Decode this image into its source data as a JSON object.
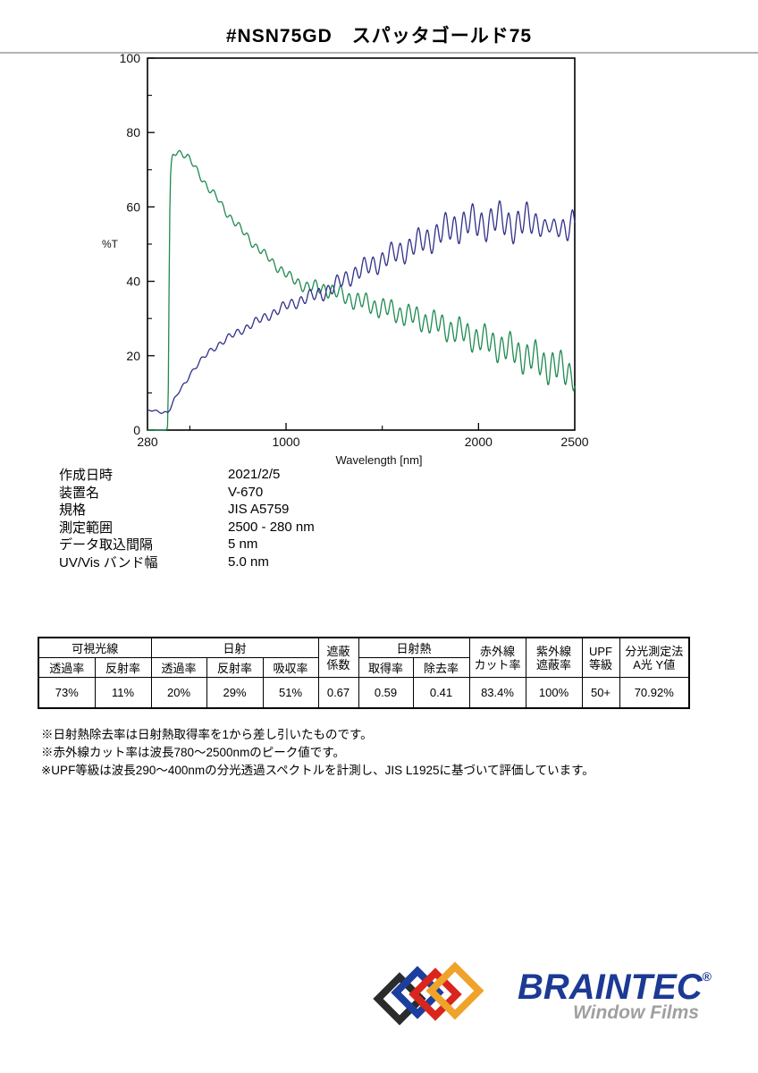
{
  "title": "#NSN75GD　スパッタゴールド75",
  "chart_data": {
    "type": "line",
    "title": "",
    "xlabel": "Wavelength [nm]",
    "ylabel": "%T",
    "xlim": [
      280,
      2500
    ],
    "ylim": [
      0,
      100
    ],
    "grid": false,
    "legend": "none",
    "x_ticks": {
      "major": [
        1000,
        2000
      ],
      "minor": [
        500,
        1500
      ],
      "labels": [
        {
          "v": 280,
          "t": "280"
        },
        {
          "v": 1000,
          "t": "1000"
        },
        {
          "v": 2000,
          "t": "2000"
        },
        {
          "v": 2500,
          "t": "2500"
        }
      ]
    },
    "y_ticks": {
      "major": [
        0,
        20,
        40,
        60,
        80,
        100
      ],
      "minor": [
        10,
        30,
        50,
        70,
        90
      ],
      "labels": [
        {
          "v": 0,
          "t": "0"
        },
        {
          "v": 20,
          "t": "20"
        },
        {
          "v": 40,
          "t": "40"
        },
        {
          "v": 60,
          "t": "60"
        },
        {
          "v": 80,
          "t": "80"
        },
        {
          "v": 100,
          "t": "100"
        }
      ]
    },
    "series": [
      {
        "name": "green-curve",
        "color": "#1f8a50",
        "baseline": [
          [
            280,
            0
          ],
          [
            378,
            0
          ],
          [
            386,
            1
          ],
          [
            390,
            22
          ],
          [
            394,
            52
          ],
          [
            398,
            66
          ],
          [
            403,
            71
          ],
          [
            410,
            73.5
          ],
          [
            420,
            74.5
          ],
          [
            435,
            75
          ],
          [
            455,
            74.5
          ],
          [
            475,
            74
          ],
          [
            495,
            73
          ],
          [
            515,
            71.5
          ],
          [
            540,
            69.5
          ],
          [
            565,
            67.5
          ],
          [
            590,
            65.5
          ],
          [
            615,
            64
          ],
          [
            640,
            62.5
          ],
          [
            665,
            60.5
          ],
          [
            690,
            58.5
          ],
          [
            715,
            57
          ],
          [
            740,
            55.5
          ],
          [
            765,
            54
          ],
          [
            790,
            52.5
          ],
          [
            815,
            51
          ],
          [
            840,
            49.5
          ],
          [
            865,
            48.5
          ],
          [
            890,
            47
          ],
          [
            915,
            46
          ],
          [
            940,
            44.5
          ],
          [
            965,
            43.5
          ],
          [
            990,
            42.5
          ],
          [
            1020,
            41
          ],
          [
            1050,
            40
          ],
          [
            1080,
            39.2
          ],
          [
            1110,
            38.6
          ],
          [
            1140,
            38.4
          ],
          [
            1170,
            38.2
          ],
          [
            1200,
            38
          ],
          [
            1230,
            37.6
          ],
          [
            1260,
            37
          ],
          [
            1300,
            36
          ],
          [
            1340,
            35.2
          ],
          [
            1380,
            34.6
          ],
          [
            1420,
            34
          ],
          [
            1460,
            33.4
          ],
          [
            1500,
            32.8
          ],
          [
            1540,
            32.2
          ],
          [
            1580,
            31.6
          ],
          [
            1620,
            31
          ],
          [
            1660,
            30.4
          ],
          [
            1700,
            29.8
          ],
          [
            1740,
            29.2
          ],
          [
            1780,
            28.5
          ],
          [
            1820,
            27.8
          ],
          [
            1860,
            27.1
          ],
          [
            1900,
            26.4
          ],
          [
            1940,
            25.7
          ],
          [
            1980,
            25
          ],
          [
            2020,
            24.3
          ],
          [
            2060,
            23.5
          ],
          [
            2100,
            22.8
          ],
          [
            2140,
            22
          ],
          [
            2180,
            21.2
          ],
          [
            2220,
            20.4
          ],
          [
            2260,
            19.6
          ],
          [
            2300,
            18.8
          ],
          [
            2340,
            18
          ],
          [
            2380,
            17.2
          ],
          [
            2420,
            16.5
          ],
          [
            2460,
            15.8
          ],
          [
            2500,
            15.2
          ]
        ],
        "fringe": {
          "envelope": [
            [
              392,
              0
            ],
            [
              410,
              0.9
            ],
            [
              700,
              1
            ],
            [
              1000,
              1.3
            ],
            [
              1200,
              1.9
            ],
            [
              1500,
              2.7
            ],
            [
              1800,
              3.3
            ],
            [
              2100,
              4
            ],
            [
              2350,
              4.7
            ],
            [
              2500,
              4.2
            ]
          ],
          "periods": [
            44,
            127
          ],
          "weights": [
            0.85,
            0.35
          ],
          "phases": [
            0.4,
            1.3
          ]
        }
      },
      {
        "name": "navy-curve",
        "color": "#30308a",
        "baseline": [
          [
            280,
            5.3
          ],
          [
            330,
            5.1
          ],
          [
            360,
            4.7
          ],
          [
            385,
            4.9
          ],
          [
            400,
            6
          ],
          [
            420,
            8.2
          ],
          [
            440,
            10
          ],
          [
            460,
            11.5
          ],
          [
            480,
            13
          ],
          [
            500,
            15
          ],
          [
            530,
            17
          ],
          [
            560,
            18.8
          ],
          [
            600,
            21
          ],
          [
            650,
            23
          ],
          [
            700,
            24.8
          ],
          [
            750,
            26.3
          ],
          [
            800,
            27.8
          ],
          [
            850,
            29.2
          ],
          [
            900,
            30.6
          ],
          [
            950,
            32
          ],
          [
            1000,
            33.3
          ],
          [
            1050,
            34.4
          ],
          [
            1100,
            35.4
          ],
          [
            1150,
            36.2
          ],
          [
            1200,
            37.2
          ],
          [
            1250,
            38.5
          ],
          [
            1300,
            40.5
          ],
          [
            1350,
            42
          ],
          [
            1400,
            43.2
          ],
          [
            1450,
            44.5
          ],
          [
            1500,
            45.8
          ],
          [
            1550,
            47
          ],
          [
            1600,
            48.2
          ],
          [
            1650,
            49.3
          ],
          [
            1700,
            50.5
          ],
          [
            1750,
            51.8
          ],
          [
            1800,
            53
          ],
          [
            1850,
            54.2
          ],
          [
            1900,
            55.2
          ],
          [
            1950,
            55.8
          ],
          [
            2000,
            55.5
          ],
          [
            2050,
            56
          ],
          [
            2100,
            56.5
          ],
          [
            2150,
            55.8
          ],
          [
            2200,
            55.2
          ],
          [
            2250,
            56
          ],
          [
            2300,
            56.2
          ],
          [
            2350,
            54.5
          ],
          [
            2400,
            54
          ],
          [
            2450,
            55
          ],
          [
            2500,
            55.8
          ]
        ],
        "fringe": {
          "envelope": [
            [
              280,
              0.15
            ],
            [
              400,
              0.4
            ],
            [
              700,
              0.9
            ],
            [
              1000,
              1.4
            ],
            [
              1300,
              2.3
            ],
            [
              1600,
              3.2
            ],
            [
              1900,
              4.3
            ],
            [
              2250,
              4.6
            ],
            [
              2370,
              1.8
            ],
            [
              2450,
              3.5
            ],
            [
              2500,
              4.5
            ]
          ],
          "periods": [
            47,
            139
          ],
          "weights": [
            0.85,
            0.35
          ],
          "phases": [
            2.2,
            0.7
          ]
        }
      }
    ]
  },
  "metadata": {
    "rows": [
      {
        "label": "作成日時",
        "value": "2021/2/5"
      },
      {
        "label": "装置名",
        "value": "V-670"
      },
      {
        "label": "規格",
        "value": "JIS A5759"
      },
      {
        "label": "測定範囲",
        "value": "2500 - 280 nm"
      },
      {
        "label": "データ取込間隔",
        "value": "5 nm"
      },
      {
        "label": "UV/Vis バンド幅",
        "value": "5.0 nm"
      }
    ]
  },
  "results_table": {
    "groups": [
      {
        "label": "可視光線",
        "sub": [
          "透過率",
          "反射率"
        ]
      },
      {
        "label": "日射",
        "sub": [
          "透過率",
          "反射率",
          "吸収率"
        ]
      },
      {
        "label": "遮蔽\n係数"
      },
      {
        "label": "日射熱",
        "sub": [
          "取得率",
          "除去率"
        ]
      },
      {
        "label": "赤外線\nカット率"
      },
      {
        "label": "紫外線\n遮蔽率"
      },
      {
        "label": "UPF\n等級"
      },
      {
        "label": "分光測定法\nA光 Y値"
      }
    ],
    "values": [
      "73%",
      "11%",
      "20%",
      "29%",
      "51%",
      "0.67",
      "0.59",
      "0.41",
      "83.4%",
      "100%",
      "50+",
      "70.92%"
    ]
  },
  "notes": [
    "※日射熱除去率は日射熱取得率を1から差し引いたものです。",
    "※赤外線カット率は波長780～2500nmのピーク値です。",
    "※UPF等級は波長290～400nmの分光透過スペクトルを計測し、JIS L1925に基づいて評価しています。"
  ],
  "logo": {
    "brand": "BRAINTEC",
    "registered": "®",
    "tagline": "Window Films",
    "brand_color": "#1c3a94",
    "tagline_color": "#a0a0a0",
    "colors": [
      "#2b2b2b",
      "#1c3f9e",
      "#da251d",
      "#f0a32a"
    ]
  }
}
